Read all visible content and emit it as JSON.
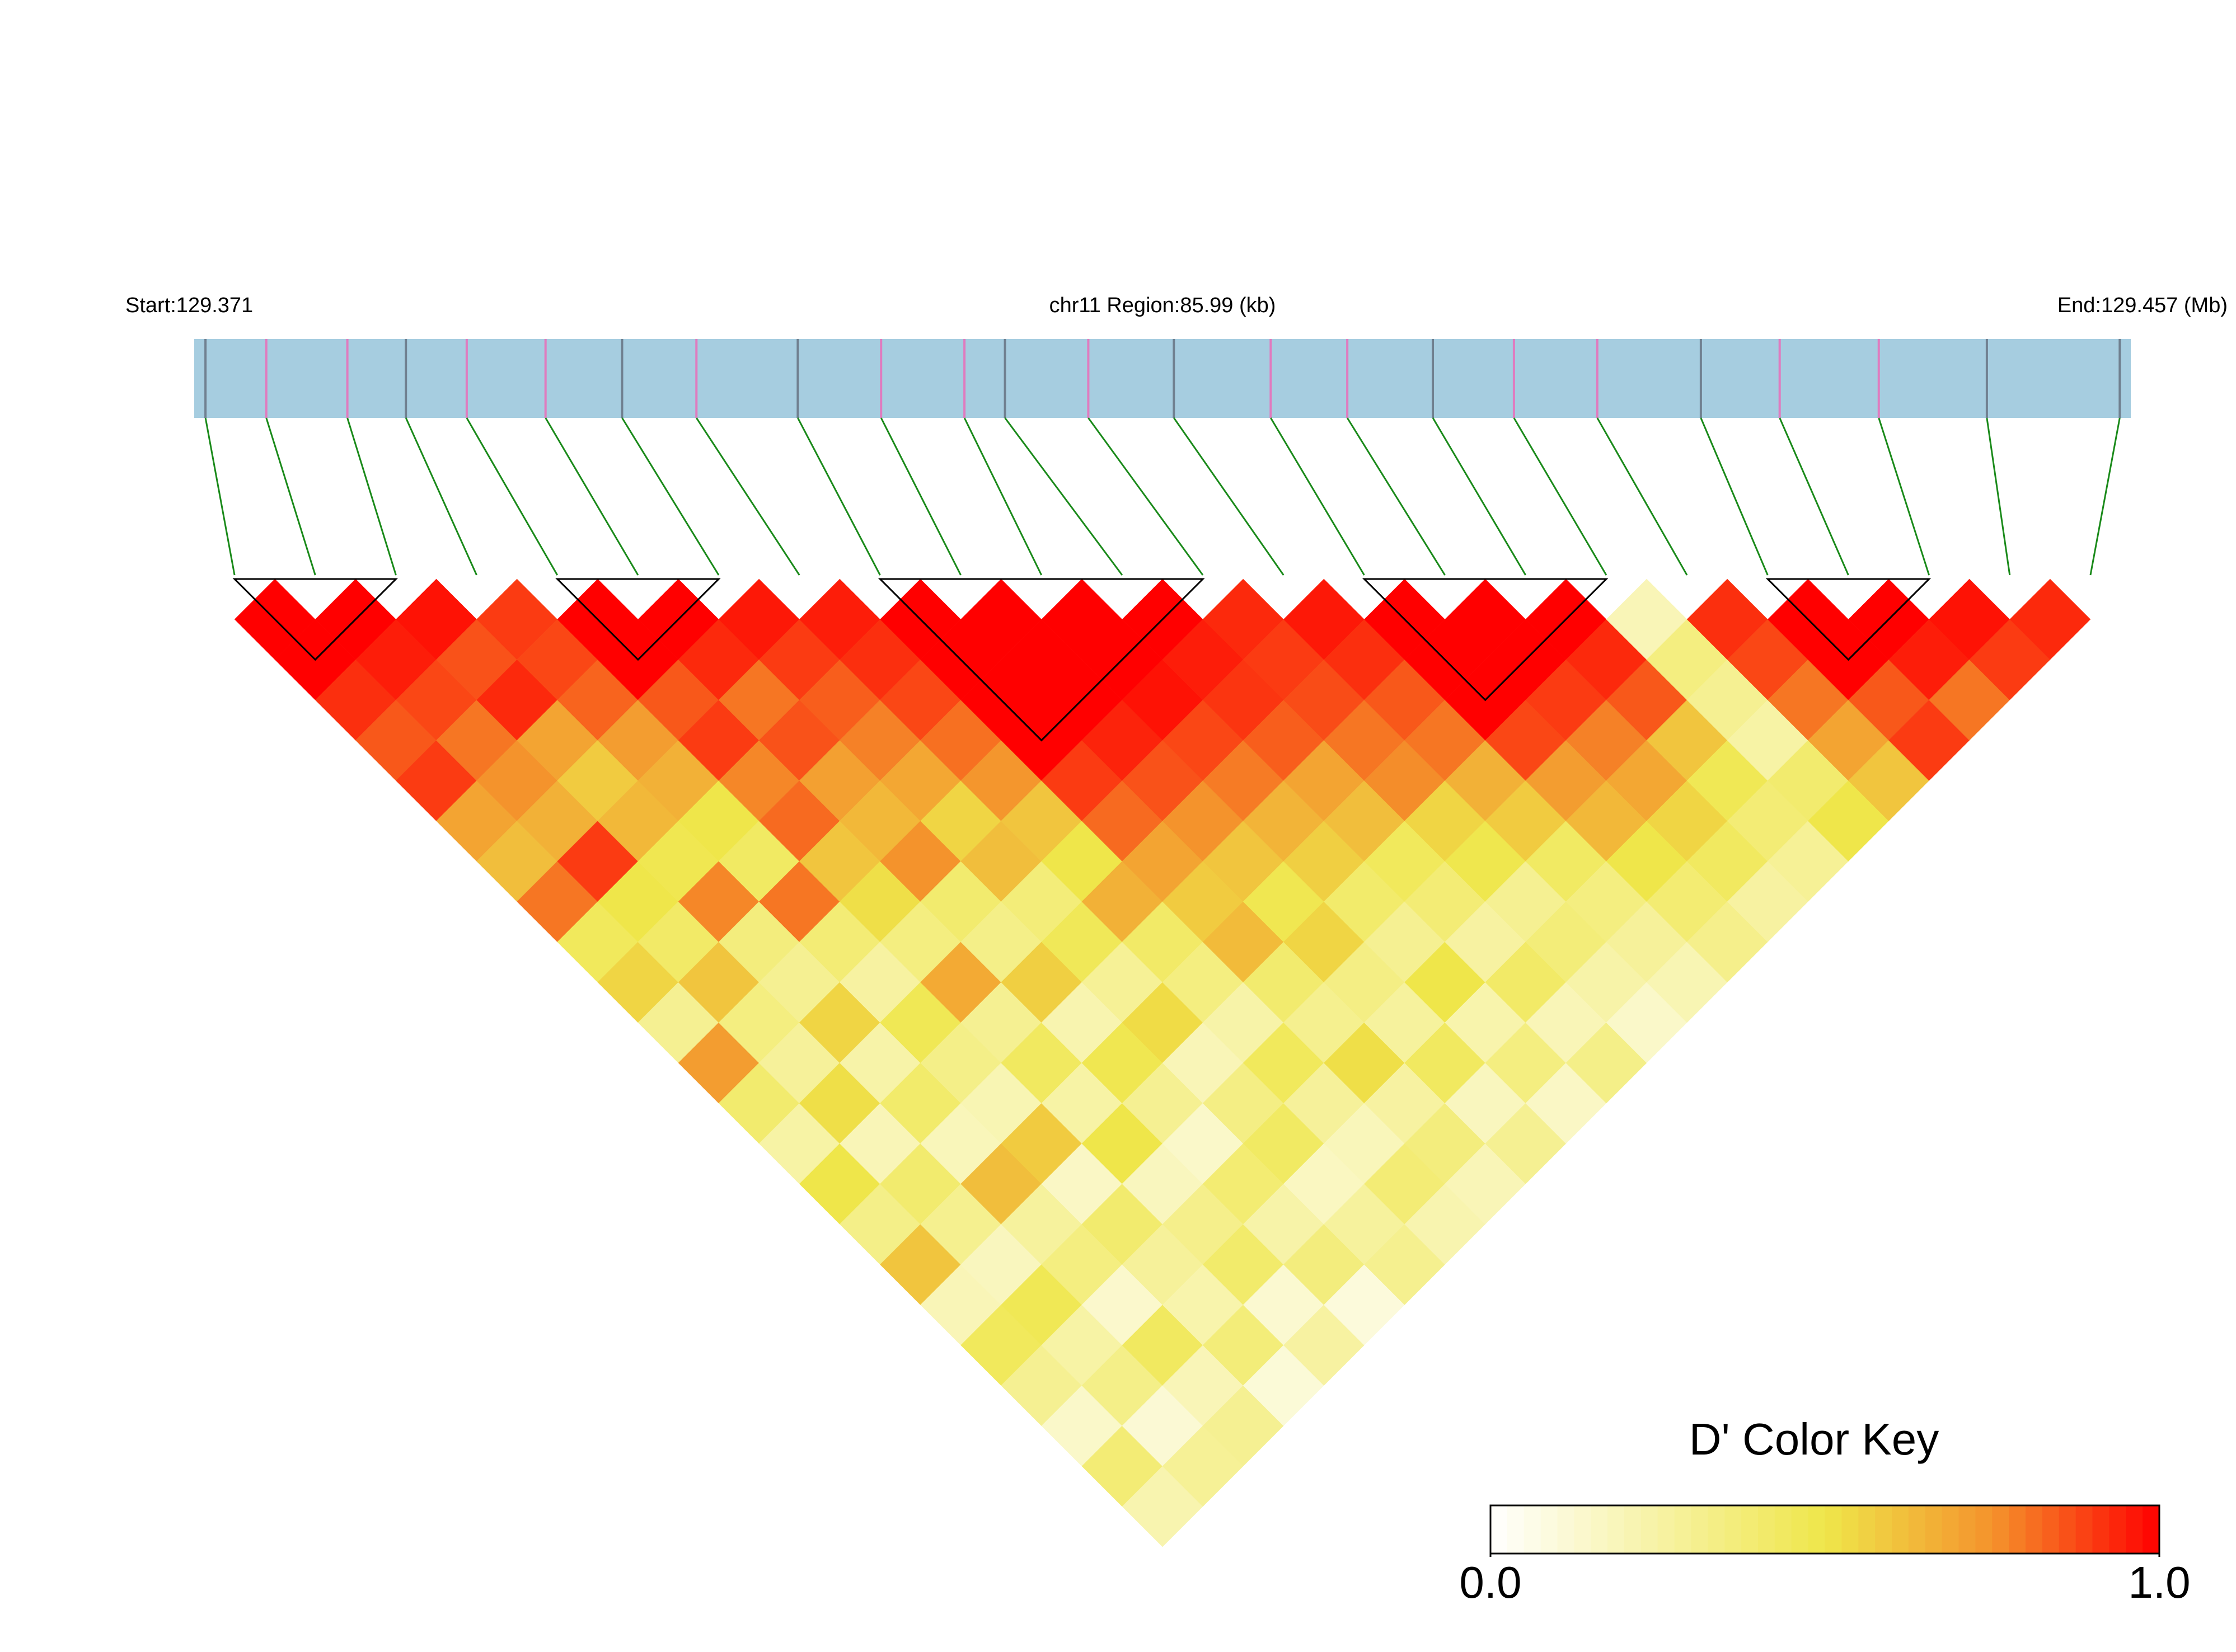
{
  "chart_data": {
    "type": "ld-heatmap",
    "start_label": "Start:129.371",
    "region_label": "chr11 Region:85.99 (kb)",
    "end_label": "End:129.457 (Mb)",
    "key_title": "D' Color Key",
    "xlim": [
      0,
      85.99
    ],
    "clim": [
      0,
      1
    ],
    "cticks": [
      {
        "value": 0,
        "label": "0.0"
      },
      {
        "value": 1,
        "label": "1.0"
      }
    ],
    "color_stops": [
      {
        "value": 0,
        "color": "#ffffff"
      },
      {
        "value": 0.5,
        "color": "#efe64a"
      },
      {
        "value": 0.75,
        "color": "#f4932c"
      },
      {
        "value": 1,
        "color": "#ff0000"
      }
    ],
    "track_color": "#a6cde0",
    "connector_color": "#1a8a1a",
    "snp_positions": [
      0.5,
      3.2,
      6.8,
      9.4,
      12.1,
      15.6,
      19.0,
      22.3,
      26.8,
      30.5,
      34.2,
      36.0,
      39.7,
      43.5,
      47.8,
      51.2,
      55.0,
      58.6,
      62.3,
      66.9,
      70.4,
      74.8,
      79.6,
      85.5
    ],
    "snp_colors": [
      "#708090",
      "#e07bbf",
      "#e07bbf",
      "#708090",
      "#e07bbf",
      "#e07bbf",
      "#708090",
      "#e07bbf",
      "#708090",
      "#e07bbf",
      "#e07bbf",
      "#708090",
      "#e07bbf",
      "#708090",
      "#e07bbf",
      "#e07bbf",
      "#708090",
      "#e07bbf",
      "#e07bbf",
      "#708090",
      "#e07bbf",
      "#e07bbf",
      "#708090",
      "#708090"
    ],
    "ld_rows": [
      [
        1,
        1,
        0.92,
        0.85,
        0.9,
        0.7,
        0.62,
        0.8,
        0.45,
        0.55,
        0.3,
        0.72,
        0.4,
        0.25,
        0.5,
        0.33,
        0.6,
        0.2,
        0.45,
        0.3,
        0.15,
        0.38,
        0.22
      ],
      [
        1,
        0.95,
        0.88,
        0.8,
        0.75,
        0.66,
        0.9,
        0.5,
        0.42,
        0.6,
        0.35,
        0.28,
        0.52,
        0.2,
        0.4,
        0.31,
        0.18,
        0.47,
        0.25,
        0.33,
        0.12,
        0.29
      ],
      [
        0.97,
        0.86,
        0.93,
        0.7,
        0.58,
        0.64,
        0.48,
        0.77,
        0.36,
        0.3,
        0.55,
        0.24,
        0.41,
        0.19,
        0.62,
        0.27,
        0.35,
        0.14,
        0.44,
        0.2,
        0.3
      ],
      [
        0.9,
        0.88,
        0.83,
        0.72,
        0.66,
        0.5,
        0.43,
        0.8,
        0.38,
        0.26,
        0.47,
        0.33,
        0.21,
        0.58,
        0.16,
        0.4,
        0.28,
        0.23,
        0.37,
        0.11
      ],
      [
        1,
        1,
        0.85,
        0.9,
        0.77,
        0.82,
        0.6,
        0.52,
        0.35,
        0.68,
        0.3,
        0.44,
        0.25,
        0.5,
        0.18,
        0.32,
        0.41,
        0.13,
        0.26
      ],
      [
        1,
        0.93,
        0.8,
        0.86,
        0.71,
        0.64,
        0.75,
        0.4,
        0.33,
        0.57,
        0.22,
        0.48,
        0.3,
        0.15,
        0.39,
        0.24,
        0.36,
        0.1
      ],
      [
        0.96,
        0.9,
        0.84,
        0.78,
        0.69,
        0.55,
        0.62,
        0.37,
        0.46,
        0.29,
        0.53,
        0.2,
        0.34,
        0.43,
        0.17,
        0.27,
        0.31
      ],
      [
        0.95,
        0.92,
        0.88,
        0.81,
        0.74,
        0.6,
        0.5,
        0.66,
        0.42,
        0.35,
        0.24,
        0.45,
        0.28,
        0.19,
        0.38,
        0.22
      ],
      [
        1,
        1,
        1,
        1,
        0.9,
        0.82,
        0.7,
        0.58,
        0.63,
        0.4,
        0.31,
        0.52,
        0.26,
        0.36,
        0.2
      ],
      [
        1,
        1,
        1,
        0.94,
        0.86,
        0.75,
        0.6,
        0.48,
        0.55,
        0.34,
        0.27,
        0.44,
        0.18,
        0.3
      ],
      [
        1,
        1,
        0.97,
        0.88,
        0.79,
        0.65,
        0.57,
        0.41,
        0.3,
        0.5,
        0.23,
        0.35,
        0.16
      ],
      [
        1,
        0.95,
        0.91,
        0.84,
        0.7,
        0.62,
        0.45,
        0.38,
        0.26,
        0.42,
        0.2,
        0.33
      ],
      [
        0.93,
        0.9,
        0.87,
        0.8,
        0.76,
        0.55,
        0.49,
        0.3,
        0.37,
        0.24,
        0.15
      ],
      [
        0.96,
        0.92,
        0.85,
        0.8,
        0.66,
        0.58,
        0.43,
        0.35,
        0.28,
        0.21
      ],
      [
        1,
        1,
        1,
        0.88,
        0.72,
        0.64,
        0.5,
        0.39,
        0.32
      ],
      [
        1,
        1,
        0.9,
        0.78,
        0.69,
        0.55,
        0.44,
        0.26
      ],
      [
        1,
        0.93,
        0.85,
        0.6,
        0.47,
        0.38,
        0.29
      ],
      [
        0.2,
        0.35,
        0.3,
        0.25,
        0.4,
        0.5
      ],
      [
        0.92,
        0.88,
        0.8,
        0.7,
        0.6
      ],
      [
        1,
        1,
        0.85,
        0.9
      ],
      [
        1,
        0.95,
        0.8
      ],
      [
        0.97,
        0.9
      ],
      [
        0.93
      ]
    ],
    "blocks": [
      [
        0,
        2
      ],
      [
        4,
        6
      ],
      [
        8,
        12
      ],
      [
        14,
        17
      ],
      [
        19,
        21
      ]
    ]
  }
}
